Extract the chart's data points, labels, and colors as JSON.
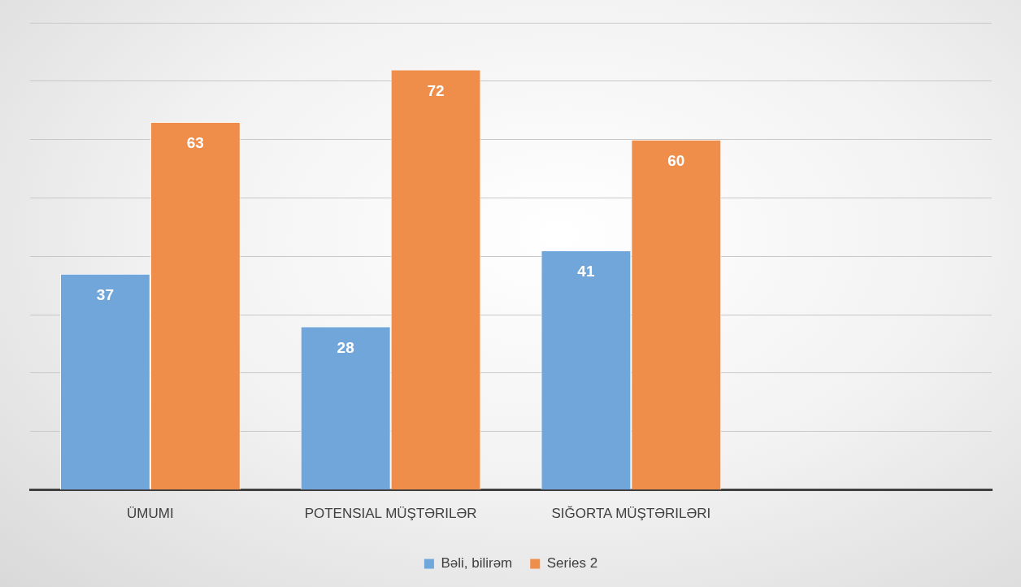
{
  "chart_data": {
    "type": "bar",
    "categories": [
      "ÜMUMI",
      "POTENSIAL MÜŞTƏRILƏR",
      "SIĞORTA MÜŞTƏRILƏRI",
      null
    ],
    "series": [
      {
        "name": "Bəli, bilirəm",
        "color": "#71a6da",
        "values": [
          37,
          28,
          41,
          null
        ]
      },
      {
        "name": "Series 2",
        "color": "#ef8d4b",
        "values": [
          63,
          72,
          60,
          null
        ]
      }
    ],
    "ylim": [
      0,
      80
    ],
    "yticks": [
      {
        "value": 0,
        "label": null
      },
      {
        "value": 10,
        "label": null
      },
      {
        "value": 20,
        "label": null
      },
      {
        "value": 30,
        "label": null
      },
      {
        "value": 40,
        "label": null
      },
      {
        "value": 50,
        "label": null
      },
      {
        "value": 60,
        "label": null
      },
      {
        "value": 70,
        "label": null
      },
      {
        "value": 80,
        "label": null
      }
    ],
    "tick_labels": "x",
    "grid": "y",
    "legend": "bottom",
    "data_labels": true
  }
}
